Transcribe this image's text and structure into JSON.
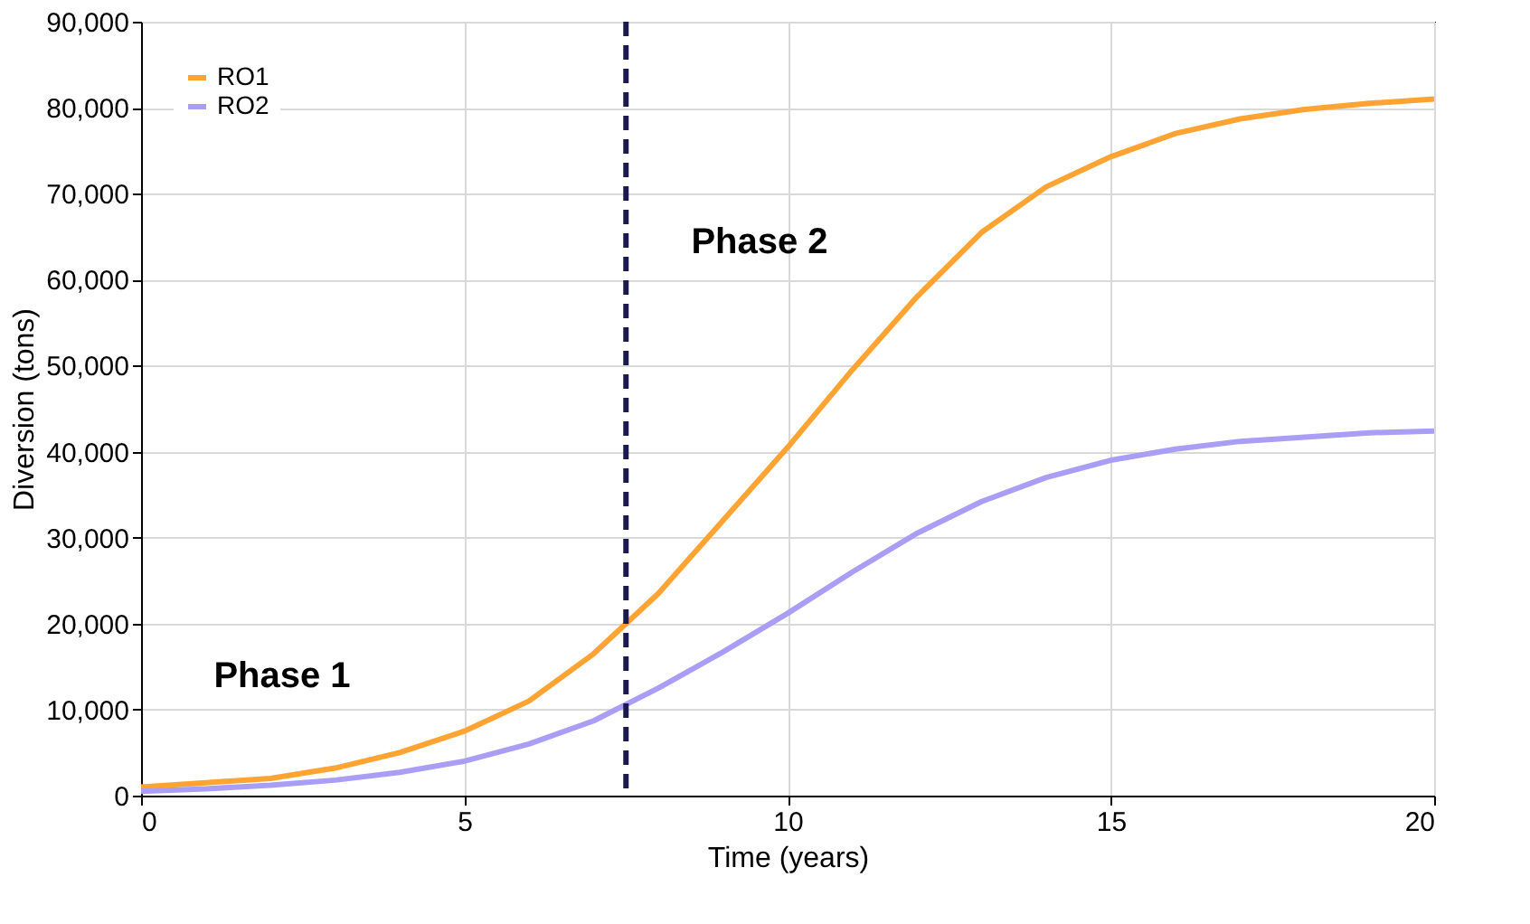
{
  "chart_data": {
    "type": "line",
    "xlabel": "Time (years)",
    "ylabel": "Diversion (tons)",
    "x": [
      0,
      1,
      2,
      3,
      4,
      5,
      6,
      7,
      8,
      9,
      10,
      11,
      12,
      13,
      14,
      15,
      16,
      17,
      18,
      19,
      20
    ],
    "series": [
      {
        "name": "RO1",
        "color": "#ffa333",
        "values": [
          1000,
          1500,
          2000,
          3200,
          5000,
          7500,
          11000,
          16500,
          23500,
          32000,
          40500,
          49500,
          58000,
          65500,
          70800,
          74300,
          77000,
          78700,
          79800,
          80500,
          81000
        ]
      },
      {
        "name": "RO2",
        "color": "#a99df5",
        "values": [
          500,
          800,
          1200,
          1800,
          2700,
          4000,
          6000,
          8700,
          12500,
          16700,
          21200,
          26000,
          30500,
          34200,
          37000,
          39000,
          40300,
          41200,
          41700,
          42200,
          42400
        ]
      }
    ],
    "xlim": [
      0,
      20
    ],
    "xticks": [
      0,
      5,
      10,
      15,
      20
    ],
    "ylim": [
      0,
      90000
    ],
    "yticks": [
      {
        "value": 0,
        "label": "0"
      },
      {
        "value": 10000,
        "label": "10,000"
      },
      {
        "value": 20000,
        "label": "20,000"
      },
      {
        "value": 30000,
        "label": "30,000"
      },
      {
        "value": 40000,
        "label": "40,000"
      },
      {
        "value": 50000,
        "label": "50,000"
      },
      {
        "value": 60000,
        "label": "60,000"
      },
      {
        "value": 70000,
        "label": "70,000"
      },
      {
        "value": 80000,
        "label": "80,000"
      },
      {
        "value": 90000,
        "label": "90,000"
      }
    ],
    "ref_lines": [
      {
        "axis": "x",
        "value": 7.5,
        "color": "#1a1a4e",
        "line_style": "dashed"
      }
    ],
    "annotations": [
      "Phase 1",
      "Phase 2"
    ],
    "grid": true,
    "legend": "top left",
    "marker": "none",
    "line_style": "solid"
  }
}
